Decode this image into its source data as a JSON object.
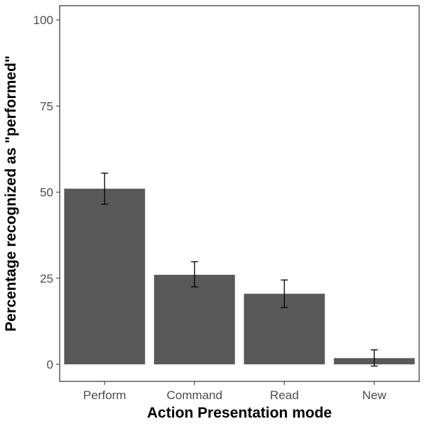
{
  "chart_data": {
    "type": "bar",
    "title": "",
    "xlabel": "Action Presentation mode",
    "ylabel": "Percentage recognized as \"performed\"",
    "categories": [
      "Perform",
      "Command",
      "Read",
      "New"
    ],
    "values": [
      51,
      26,
      20.5,
      1.8
    ],
    "error_low": [
      46.5,
      22.5,
      16.5,
      -0.5
    ],
    "error_high": [
      55.5,
      29.8,
      24.5,
      4.2
    ],
    "ylim": [
      0,
      100
    ],
    "yticks": [
      0,
      25,
      50,
      75,
      100
    ],
    "ytick_labels": [
      "0",
      "25",
      "50",
      "75",
      "100"
    ],
    "grid": false,
    "colors": {
      "bar": "#595959",
      "panel_border": "#333333",
      "error_bar": "#000000"
    }
  }
}
